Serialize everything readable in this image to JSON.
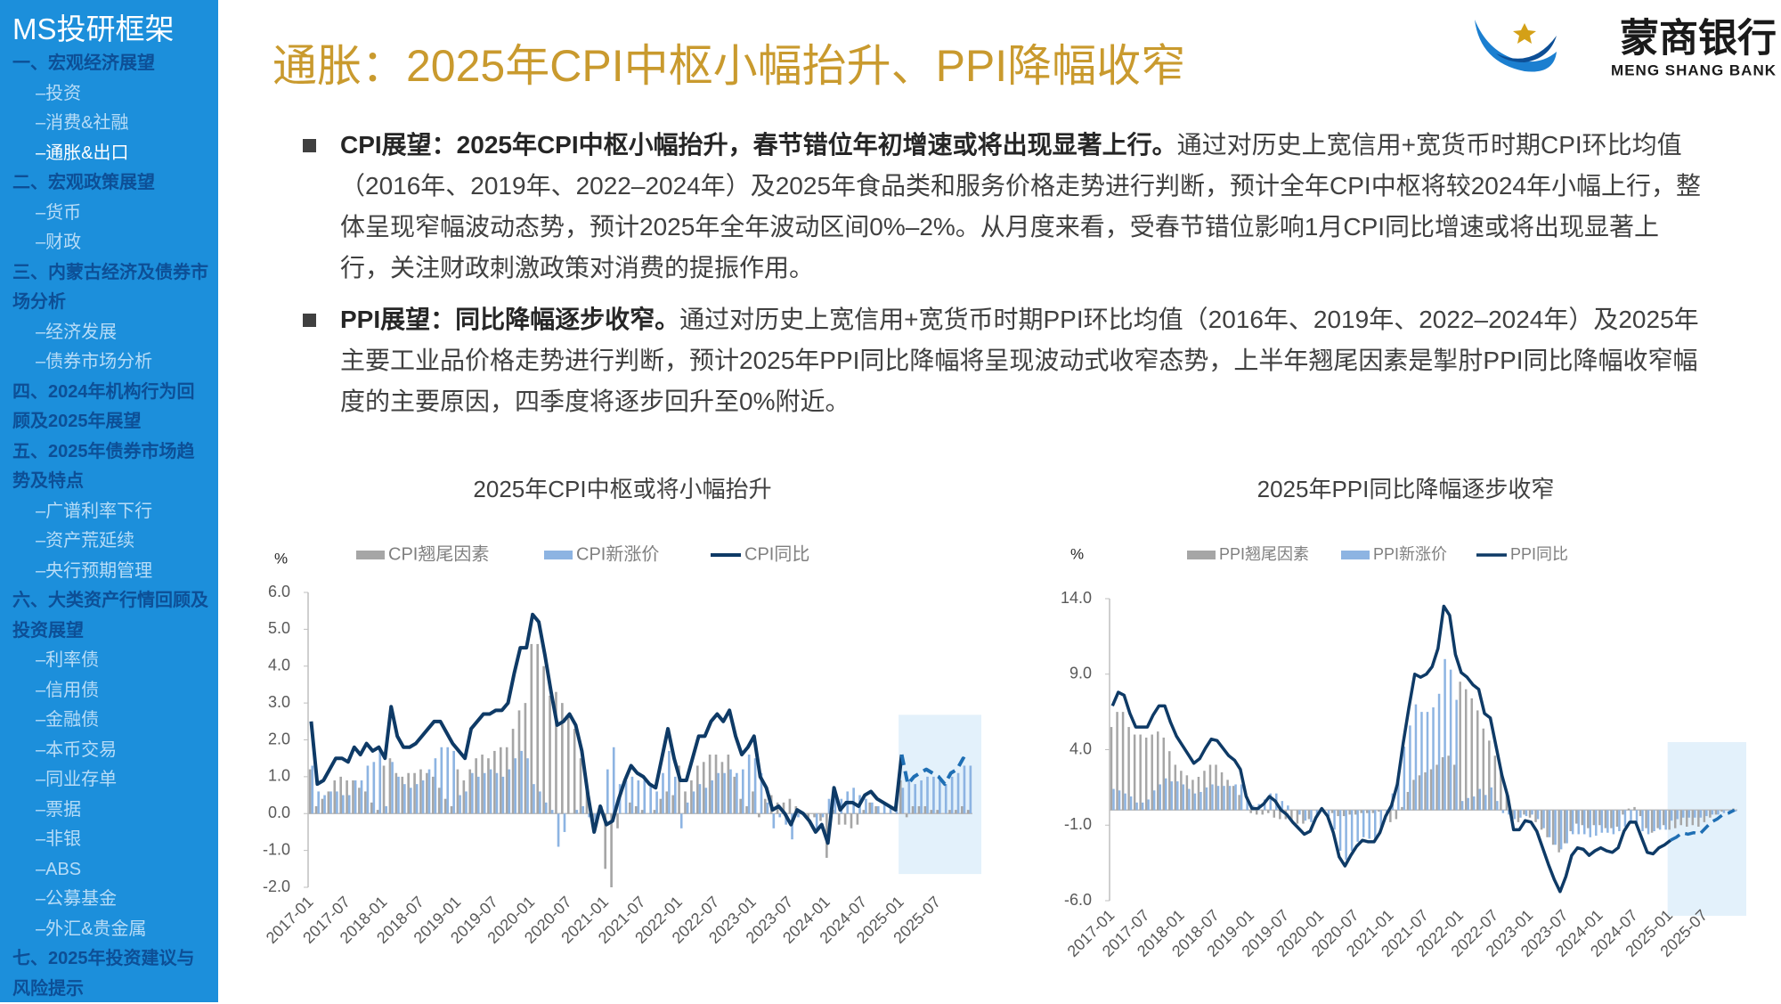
{
  "sidebar": {
    "title": "MS投研框架",
    "items": [
      {
        "text": "一、宏观经济展望",
        "level": 1
      },
      {
        "text": "–投资",
        "level": 2
      },
      {
        "text": "–消费&社融",
        "level": 2
      },
      {
        "text": "–通胀&出口",
        "level": 2,
        "active": true
      },
      {
        "text": "二、宏观政策展望",
        "level": 1
      },
      {
        "text": "–货币",
        "level": 2
      },
      {
        "text": "–财政",
        "level": 2
      },
      {
        "text": "三、内蒙古经济及债券市场分析",
        "level": 1
      },
      {
        "text": "–经济发展",
        "level": 2
      },
      {
        "text": "–债券市场分析",
        "level": 2
      },
      {
        "text": "四、2024年机构行为回顾及2025年展望",
        "level": 1
      },
      {
        "text": "五、2025年债券市场趋势及特点",
        "level": 1
      },
      {
        "text": "–广谱利率下行",
        "level": 2
      },
      {
        "text": "–资产荒延续",
        "level": 2
      },
      {
        "text": "–央行预期管理",
        "level": 2
      },
      {
        "text": "六、大类资产行情回顾及投资展望",
        "level": 1
      },
      {
        "text": "–利率债",
        "level": 2
      },
      {
        "text": "–信用债",
        "level": 2
      },
      {
        "text": "–金融债",
        "level": 2
      },
      {
        "text": "–本币交易",
        "level": 2
      },
      {
        "text": "–同业存单",
        "level": 2
      },
      {
        "text": "–票据",
        "level": 2
      },
      {
        "text": "–非银",
        "level": 2
      },
      {
        "text": "–ABS",
        "level": 2
      },
      {
        "text": "–公募基金",
        "level": 2
      },
      {
        "text": "–外汇&贵金属",
        "level": 2
      },
      {
        "text": "七、2025年投资建议与风险提示",
        "level": 1
      }
    ]
  },
  "header": {
    "title": "通胀：2025年CPI中枢小幅抬升、PPI降幅收窄",
    "logo_name": "蒙商银行",
    "logo_sub": "MENG SHANG BANK"
  },
  "bullets": [
    {
      "lead": "CPI展望：2025年CPI中枢小幅抬升，春节错位年初增速或将出现显著上行。",
      "text": "通过对历史上宽信用+宽货币时期CPI环比均值（2016年、2019年、2022–2024年）及2025年食品类和服务价格走势进行判断，预计全年CPI中枢将较2024年小幅上行，整体呈现窄幅波动态势，预计2025年全年波动区间0%–2%。从月度来看，受春节错位影响1月CPI同比增速或将出现显著上行，关注财政刺激政策对消费的提振作用。"
    },
    {
      "lead": "PPI展望：同比降幅逐步收窄。",
      "text": "通过对历史上宽信用+宽货币时期PPI环比均值（2016年、2019年、2022–2024年）及2025年主要工业品价格走势进行判断，预计2025年PPI同比降幅将呈现波动式收窄态势，上半年翘尾因素是掣肘PPI同比降幅收窄幅度的主要原因，四季度将逐步回升至0%附近。"
    }
  ],
  "chart_data": [
    {
      "type": "bar_line",
      "title": "2025年CPI中枢或将小幅抬升",
      "y_unit": "%",
      "grid": false,
      "legend": "top",
      "forecast_from": "2025-01",
      "forecast_color": "#e3f1fb",
      "categories": [
        "2017-01",
        null,
        null,
        null,
        null,
        null,
        "2017-07",
        null,
        null,
        null,
        null,
        null,
        "2018-01",
        null,
        null,
        null,
        null,
        null,
        "2018-07",
        null,
        null,
        null,
        null,
        null,
        "2019-01",
        null,
        null,
        null,
        null,
        null,
        "2019-07",
        null,
        null,
        null,
        null,
        null,
        "2020-01",
        null,
        null,
        null,
        null,
        null,
        "2020-07",
        null,
        null,
        null,
        null,
        null,
        "2021-01",
        null,
        null,
        null,
        null,
        null,
        "2021-07",
        null,
        null,
        null,
        null,
        null,
        "2022-01",
        null,
        null,
        null,
        null,
        null,
        "2022-07",
        null,
        null,
        null,
        null,
        null,
        "2023-01",
        null,
        null,
        null,
        null,
        null,
        "2023-07",
        null,
        null,
        null,
        null,
        null,
        "2024-01",
        null,
        null,
        null,
        null,
        null,
        "2024-07",
        null,
        null,
        null,
        null,
        null,
        "2025-01",
        null,
        null,
        null,
        null,
        null,
        "2025-07",
        null,
        null,
        null,
        null,
        null
      ],
      "ylim": [
        -2,
        6
      ],
      "yticks": [
        {
          "value": -2,
          "label": "-2.0"
        },
        {
          "value": -1,
          "label": "-1.0"
        },
        {
          "value": 0,
          "label": "0.0"
        },
        {
          "value": 1,
          "label": "1.0"
        },
        {
          "value": 2,
          "label": "2.0"
        },
        {
          "value": 3,
          "label": "3.0"
        },
        {
          "value": 4,
          "label": "4.0"
        },
        {
          "value": 5,
          "label": "5.0"
        },
        {
          "value": 6,
          "label": "6.0"
        }
      ],
      "series": [
        {
          "name": "CPI翘尾因素",
          "type": "bar",
          "color": "#a6a6a6",
          "values": [
            1.2,
            0.2,
            0.4,
            0.6,
            0.9,
            1.0,
            0.9,
            0.9,
            0.7,
            0.6,
            0.3,
            0.1,
            1.3,
            1.5,
            1.1,
            1.0,
            1.1,
            1.1,
            1.2,
            1.1,
            1.0,
            0.7,
            0.4,
            0.2,
            1.2,
            0.9,
            1.2,
            1.5,
            1.6,
            1.5,
            1.7,
            1.8,
            1.8,
            2.3,
            2.8,
            3.0,
            4.6,
            4.6,
            4.0,
            3.2,
            3.3,
            3.0,
            2.7,
            2.3,
            1.5,
            0.6,
            -0.3,
            0.0,
            -1.5,
            -2.0,
            -0.4,
            0.0,
            0.3,
            0.2,
            0.1,
            0.0,
            0.1,
            0.4,
            0.6,
            0.5,
            1.3,
            0.6,
            0.9,
            1.3,
            1.4,
            1.6,
            1.6,
            1.4,
            1.6,
            1.0,
            0.4,
            0.2,
            0.6,
            -0.1,
            0.4,
            0.5,
            0.3,
            0.3,
            0.4,
            0.2,
            0.0,
            -0.2,
            -0.1,
            -0.2,
            -1.2,
            0.1,
            -0.3,
            -0.3,
            -0.4,
            -0.3,
            0.1,
            0.3,
            0.2,
            0.0,
            0.0,
            0.0,
            0.9,
            -0.1,
            0.2,
            0.2,
            0.2,
            0.1,
            0.1,
            0.0,
            0.1,
            0.1,
            0.2,
            0.1
          ]
        },
        {
          "name": "CPI新涨价",
          "type": "bar",
          "color": "#8db4e2",
          "values": [
            1.3,
            0.6,
            0.5,
            0.6,
            0.6,
            0.5,
            0.5,
            0.9,
            0.9,
            1.3,
            1.4,
            1.7,
            0.2,
            1.4,
            1.0,
            0.8,
            0.7,
            0.8,
            0.9,
            1.2,
            1.5,
            1.8,
            1.8,
            1.7,
            0.5,
            0.6,
            1.1,
            1.0,
            1.1,
            1.2,
            1.1,
            1.0,
            1.2,
            1.5,
            1.7,
            1.5,
            0.8,
            0.6,
            0.3,
            0.1,
            -0.9,
            -0.5,
            0.0,
            0.1,
            0.2,
            -0.1,
            -0.2,
            0.2,
            1.2,
            1.8,
            0.8,
            0.9,
            1.0,
            0.9,
            0.9,
            0.8,
            0.6,
            1.1,
            1.7,
            1.0,
            -0.4,
            0.3,
            0.6,
            0.8,
            0.7,
            0.9,
            1.1,
            1.1,
            1.2,
            1.1,
            1.2,
            1.6,
            1.5,
            1.1,
            0.3,
            -0.4,
            -0.1,
            -0.3,
            -0.7,
            -0.1,
            0.0,
            0.0,
            -0.4,
            -0.1,
            0.4,
            0.6,
            0.4,
            0.6,
            0.7,
            0.5,
            0.4,
            0.3,
            0.2,
            0.3,
            0.2,
            0.1,
            0.7,
            0.9,
            0.8,
            0.9,
            1.0,
            1.0,
            0.9,
            0.8,
            1.0,
            1.1,
            1.3,
            1.3
          ]
        },
        {
          "name": "CPI同比",
          "type": "line",
          "color": "#0e3a66",
          "forecast_color": "#1f6fb4",
          "values": [
            2.5,
            0.8,
            0.9,
            1.2,
            1.5,
            1.5,
            1.4,
            1.8,
            1.6,
            1.9,
            1.7,
            1.8,
            1.5,
            2.9,
            2.1,
            1.8,
            1.8,
            1.9,
            2.1,
            2.3,
            2.5,
            2.5,
            2.2,
            1.9,
            1.7,
            1.5,
            2.3,
            2.5,
            2.7,
            2.7,
            2.8,
            2.8,
            3.0,
            3.8,
            4.5,
            4.5,
            5.4,
            5.2,
            4.3,
            3.3,
            2.4,
            2.5,
            2.7,
            2.4,
            1.7,
            0.5,
            -0.5,
            0.2,
            -0.3,
            -0.2,
            0.4,
            0.9,
            1.3,
            1.1,
            1.0,
            0.8,
            0.7,
            1.5,
            2.3,
            1.5,
            0.9,
            0.9,
            1.5,
            2.1,
            2.1,
            2.5,
            2.7,
            2.5,
            2.8,
            2.1,
            1.6,
            1.8,
            2.1,
            1.0,
            0.7,
            0.1,
            0.2,
            0.0,
            -0.3,
            0.1,
            0.0,
            -0.2,
            -0.5,
            -0.3,
            -0.8,
            0.7,
            0.1,
            0.3,
            0.3,
            0.2,
            0.5,
            0.6,
            0.4,
            0.3,
            0.2,
            0.1,
            1.6,
            0.8,
            1.0,
            1.1,
            1.2,
            1.1,
            1.0,
            0.8,
            1.1,
            1.2,
            1.5,
            1.4
          ]
        }
      ]
    },
    {
      "type": "bar_line",
      "title": "2025年PPI同比降幅逐步收窄",
      "y_unit": "%",
      "grid": false,
      "legend": "top",
      "forecast_from": "2025-01",
      "forecast_color": "#e3f1fb",
      "categories": [
        "2017-01",
        null,
        null,
        null,
        null,
        null,
        "2017-07",
        null,
        null,
        null,
        null,
        null,
        "2018-01",
        null,
        null,
        null,
        null,
        null,
        "2018-07",
        null,
        null,
        null,
        null,
        null,
        "2019-01",
        null,
        null,
        null,
        null,
        null,
        "2019-07",
        null,
        null,
        null,
        null,
        null,
        "2020-01",
        null,
        null,
        null,
        null,
        null,
        "2020-07",
        null,
        null,
        null,
        null,
        null,
        "2021-01",
        null,
        null,
        null,
        null,
        null,
        "2021-07",
        null,
        null,
        null,
        null,
        null,
        "2022-01",
        null,
        null,
        null,
        null,
        null,
        "2022-07",
        null,
        null,
        null,
        null,
        null,
        "2023-01",
        null,
        null,
        null,
        null,
        null,
        "2023-07",
        null,
        null,
        null,
        null,
        null,
        "2024-01",
        null,
        null,
        null,
        null,
        null,
        "2024-07",
        null,
        null,
        null,
        null,
        null,
        "2025-01",
        null,
        null,
        null,
        null,
        null,
        "2025-07",
        null,
        null,
        null,
        null,
        null
      ],
      "ylim": [
        -6,
        14
      ],
      "yticks": [
        {
          "value": -6,
          "label": "-6.0"
        },
        {
          "value": -1,
          "label": "-1.0"
        },
        {
          "value": 4,
          "label": "4.0"
        },
        {
          "value": 9,
          "label": "9.0"
        },
        {
          "value": 14,
          "label": "14.0"
        }
      ],
      "series": [
        {
          "name": "PPI翘尾因素",
          "type": "bar",
          "color": "#a6a6a6",
          "values": [
            5.5,
            6.5,
            6.5,
            5.5,
            5.0,
            5.0,
            4.8,
            5.0,
            5.2,
            4.8,
            3.9,
            3.0,
            2.6,
            2.3,
            2.0,
            2.2,
            2.6,
            3.0,
            3.0,
            2.5,
            2.0,
            1.6,
            1.0,
            0.0,
            -0.2,
            -0.3,
            -0.3,
            -0.2,
            -0.5,
            -0.6,
            -0.6,
            -0.8,
            -0.9,
            -0.9,
            -0.6,
            0.0,
            0.1,
            0.0,
            -0.2,
            -0.4,
            -0.4,
            -0.3,
            -0.3,
            -0.2,
            -0.2,
            -0.2,
            -0.1,
            0.0,
            -0.8,
            -0.6,
            0.2,
            1.2,
            2.0,
            2.3,
            2.5,
            2.7,
            3.0,
            3.5,
            3.6,
            3.0,
            8.5,
            8.0,
            7.4,
            6.6,
            5.4,
            4.6,
            3.6,
            2.5,
            1.2,
            -0.7,
            -0.8,
            -0.3,
            -0.5,
            -0.8,
            -1.3,
            -1.8,
            -2.3,
            -2.8,
            -2.2,
            -1.4,
            -0.9,
            -1.0,
            -1.2,
            -1.0,
            -1.0,
            -1.2,
            -1.2,
            -1.1,
            -0.3,
            0.1,
            0.2,
            -0.4,
            -1.2,
            -1.5,
            -1.2,
            -1.0,
            -1.3,
            -1.2,
            -1.0,
            -1.1,
            -1.0,
            -1.1,
            -0.8,
            -0.5,
            -0.3,
            -0.1,
            0.0,
            0.1
          ]
        },
        {
          "name": "PPI新涨价",
          "type": "bar",
          "color": "#8db4e2",
          "values": [
            1.4,
            1.3,
            1.1,
            0.9,
            0.5,
            0.5,
            0.7,
            1.3,
            1.7,
            2.1,
            1.9,
            1.9,
            1.7,
            1.4,
            1.1,
            1.2,
            1.5,
            1.7,
            1.6,
            1.6,
            1.6,
            1.7,
            1.7,
            0.9,
            0.3,
            0.4,
            0.7,
            1.1,
            1.1,
            0.6,
            0.3,
            0.0,
            -0.3,
            -0.7,
            -0.8,
            -0.5,
            0.0,
            -0.4,
            -1.3,
            -2.7,
            -3.3,
            -2.7,
            -2.1,
            -1.8,
            -1.9,
            -1.9,
            -1.4,
            -0.4,
            1.1,
            2.3,
            4.2,
            5.6,
            7.0,
            6.5,
            6.5,
            6.8,
            7.7,
            10.0,
            9.3,
            7.3,
            0.6,
            0.8,
            0.9,
            1.4,
            1.0,
            1.5,
            0.6,
            -0.2,
            -0.3,
            -0.6,
            -0.5,
            -0.4,
            -0.3,
            -0.6,
            -1.2,
            -1.8,
            -2.3,
            -2.6,
            -2.2,
            -1.6,
            -1.6,
            -1.6,
            -1.8,
            -1.7,
            -1.5,
            -1.5,
            -1.6,
            -1.4,
            -1.1,
            -0.9,
            -1.0,
            -1.4,
            -1.6,
            -1.4,
            -1.3,
            -1.3,
            -0.7,
            -0.6,
            -0.5,
            -0.5,
            -0.5,
            -0.5,
            -0.4,
            -0.3,
            -0.3,
            -0.2,
            -0.2,
            -0.1
          ]
        },
        {
          "name": "PPI同比",
          "type": "line",
          "color": "#0e3a66",
          "forecast_color": "#1f6fb4",
          "values": [
            6.9,
            7.8,
            7.6,
            6.4,
            5.5,
            5.5,
            5.5,
            6.3,
            6.9,
            6.9,
            5.8,
            4.9,
            4.3,
            3.7,
            3.1,
            3.4,
            4.1,
            4.7,
            4.6,
            4.1,
            3.6,
            3.3,
            2.7,
            0.9,
            0.1,
            0.1,
            0.4,
            0.9,
            0.6,
            0.0,
            -0.3,
            -0.8,
            -1.2,
            -1.6,
            -1.4,
            -0.5,
            0.1,
            -0.4,
            -1.5,
            -3.1,
            -3.7,
            -3.0,
            -2.4,
            -2.0,
            -2.1,
            -2.1,
            -1.5,
            -0.4,
            0.3,
            1.7,
            4.4,
            6.8,
            9.0,
            8.8,
            9.0,
            9.5,
            10.7,
            13.5,
            12.9,
            10.3,
            9.1,
            8.8,
            8.3,
            8.0,
            6.4,
            6.1,
            4.2,
            2.3,
            0.9,
            -1.3,
            -1.3,
            -0.7,
            -0.8,
            -1.4,
            -2.5,
            -3.6,
            -4.6,
            -5.4,
            -4.4,
            -3.0,
            -2.5,
            -2.6,
            -3.0,
            -2.7,
            -2.5,
            -2.7,
            -2.8,
            -2.5,
            -1.4,
            -0.8,
            -0.8,
            -1.8,
            -2.8,
            -2.9,
            -2.5,
            -2.3,
            -2.0,
            -1.8,
            -1.5,
            -1.6,
            -1.5,
            -1.6,
            -1.2,
            -0.8,
            -0.6,
            -0.3,
            -0.2,
            0.0
          ]
        }
      ]
    }
  ]
}
